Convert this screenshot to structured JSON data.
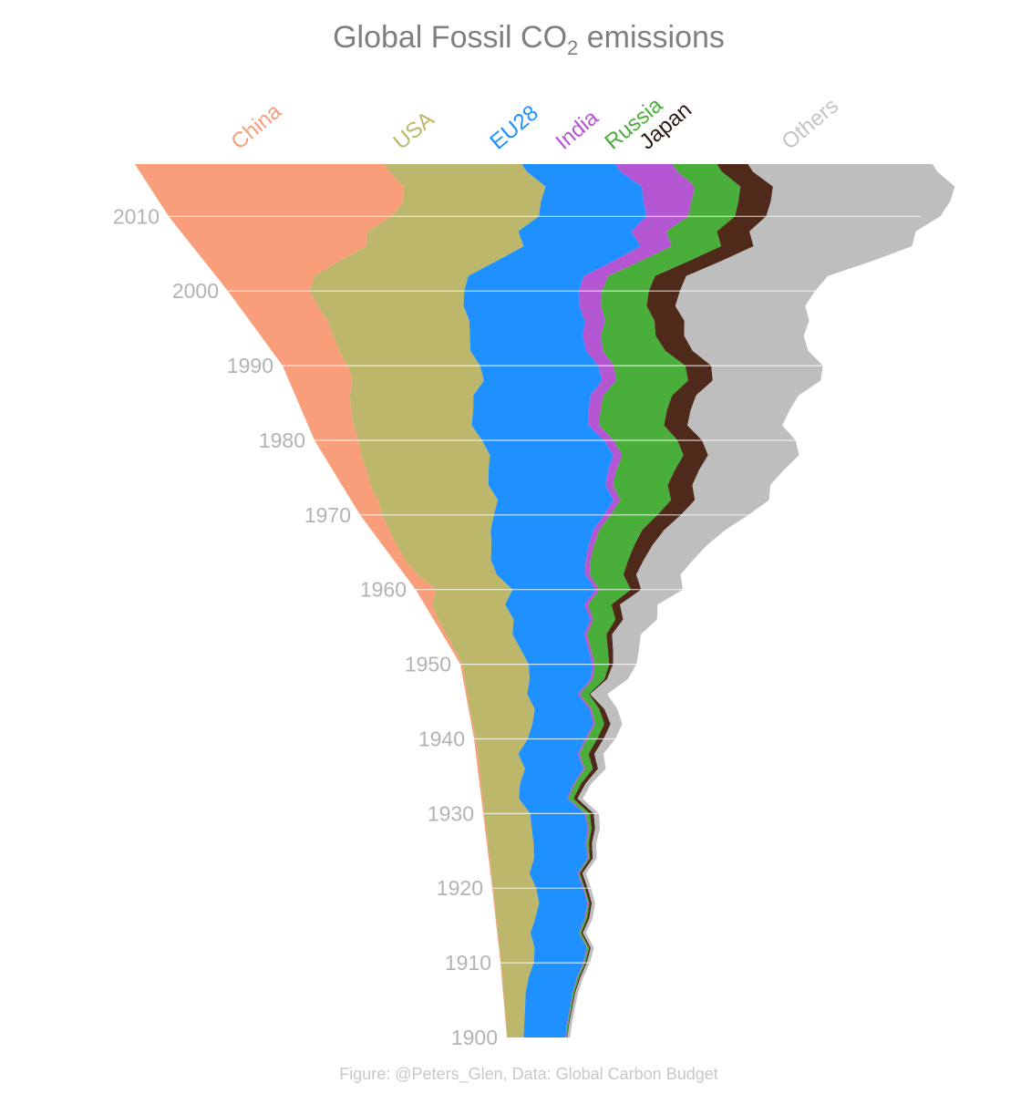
{
  "chart_data": {
    "type": "area",
    "title_main": "Global Fossil CO",
    "title_sub": "2",
    "title_rest": " emissions",
    "caption": "Figure: @Peters_Glen, Data: Global Carbon Budget",
    "years": [
      1900,
      1902,
      1904,
      1906,
      1908,
      1910,
      1912,
      1914,
      1916,
      1918,
      1920,
      1922,
      1924,
      1926,
      1928,
      1930,
      1932,
      1934,
      1936,
      1938,
      1940,
      1942,
      1944,
      1946,
      1948,
      1950,
      1952,
      1954,
      1956,
      1958,
      1960,
      1962,
      1964,
      1966,
      1968,
      1970,
      1972,
      1974,
      1976,
      1978,
      1980,
      1982,
      1984,
      1986,
      1988,
      1990,
      1992,
      1994,
      1996,
      1998,
      2000,
      2002,
      2004,
      2006,
      2008,
      2010,
      2012,
      2014,
      2016
    ],
    "year_ticks": [
      1900,
      1910,
      1920,
      1930,
      1940,
      1950,
      1960,
      1970,
      1980,
      1990,
      2000,
      2010
    ],
    "series": [
      {
        "name": "China",
        "color": "#f99e7a",
        "values": [
          0.02,
          0.02,
          0.02,
          0.02,
          0.03,
          0.03,
          0.03,
          0.03,
          0.03,
          0.04,
          0.04,
          0.05,
          0.05,
          0.05,
          0.05,
          0.06,
          0.05,
          0.06,
          0.07,
          0.08,
          0.07,
          0.05,
          0.05,
          0.06,
          0.06,
          0.08,
          0.12,
          0.15,
          0.18,
          0.3,
          0.78,
          0.5,
          0.45,
          0.55,
          0.7,
          0.85,
          1.05,
          1.1,
          1.3,
          1.45,
          1.7,
          1.75,
          1.9,
          2.1,
          2.45,
          2.5,
          2.6,
          2.8,
          3.0,
          3.05,
          3.15,
          3.8,
          5.2,
          6.7,
          7.2,
          8.6,
          9.4,
          9.8,
          9.6
        ]
      },
      {
        "name": "USA",
        "color": "#bdb76b",
        "values": [
          0.63,
          0.7,
          0.78,
          0.85,
          1.0,
          1.25,
          1.35,
          1.25,
          1.5,
          1.7,
          1.65,
          1.45,
          1.7,
          1.75,
          1.75,
          1.75,
          1.4,
          1.5,
          1.75,
          1.55,
          2.0,
          2.3,
          2.5,
          2.3,
          2.5,
          2.55,
          2.55,
          2.55,
          2.9,
          2.8,
          2.95,
          3.05,
          3.3,
          3.65,
          3.9,
          4.3,
          4.6,
          4.55,
          4.7,
          4.95,
          4.75,
          4.55,
          4.7,
          4.75,
          5.05,
          5.1,
          5.05,
          5.25,
          5.45,
          5.6,
          5.95,
          5.9,
          6.05,
          6.05,
          5.8,
          5.65,
          5.3,
          5.45,
          5.3
        ]
      },
      {
        "name": "EU28",
        "color": "#1e90ff",
        "values": [
          1.6,
          1.65,
          1.72,
          1.8,
          1.85,
          1.9,
          2.0,
          1.85,
          1.9,
          1.85,
          1.8,
          1.85,
          2.05,
          2.0,
          2.15,
          2.1,
          1.85,
          2.05,
          2.25,
          2.3,
          2.2,
          2.35,
          2.1,
          1.95,
          2.35,
          2.45,
          2.6,
          2.75,
          2.95,
          3.05,
          3.2,
          3.4,
          3.65,
          3.75,
          3.95,
          4.25,
          4.45,
          4.5,
          4.6,
          4.75,
          4.7,
          4.5,
          4.45,
          4.5,
          4.55,
          4.55,
          4.45,
          4.35,
          4.45,
          4.45,
          4.4,
          4.45,
          4.5,
          4.5,
          4.35,
          4.15,
          3.95,
          3.7,
          3.6
        ]
      },
      {
        "name": "India",
        "color": "#b556d3",
        "values": [
          0.02,
          0.02,
          0.02,
          0.02,
          0.03,
          0.03,
          0.03,
          0.03,
          0.03,
          0.04,
          0.04,
          0.04,
          0.04,
          0.05,
          0.05,
          0.05,
          0.05,
          0.05,
          0.06,
          0.06,
          0.07,
          0.07,
          0.08,
          0.08,
          0.08,
          0.1,
          0.1,
          0.11,
          0.12,
          0.14,
          0.15,
          0.17,
          0.19,
          0.21,
          0.23,
          0.25,
          0.27,
          0.29,
          0.32,
          0.35,
          0.37,
          0.4,
          0.45,
          0.5,
          0.56,
          0.6,
          0.65,
          0.7,
          0.78,
          0.85,
          0.9,
          0.95,
          1.05,
          1.2,
          1.35,
          1.6,
          1.85,
          2.05,
          2.2
        ]
      },
      {
        "name": "Russia",
        "color": "#4aaf3a",
        "values": [
          0.04,
          0.04,
          0.05,
          0.05,
          0.06,
          0.06,
          0.07,
          0.07,
          0.07,
          0.05,
          0.04,
          0.05,
          0.06,
          0.08,
          0.1,
          0.15,
          0.2,
          0.25,
          0.3,
          0.35,
          0.4,
          0.35,
          0.3,
          0.35,
          0.45,
          0.55,
          0.65,
          0.75,
          0.85,
          0.9,
          1.2,
          1.3,
          1.45,
          1.55,
          1.65,
          1.8,
          1.95,
          2.1,
          2.25,
          2.35,
          2.45,
          2.5,
          2.55,
          2.65,
          2.75,
          2.75,
          2.4,
          2.1,
          1.9,
          1.75,
          1.8,
          1.8,
          1.85,
          1.9,
          1.95,
          1.8,
          1.8,
          1.75,
          1.7
        ]
      },
      {
        "name": "Japan",
        "color": "#4f2a1a",
        "values": [
          0.02,
          0.03,
          0.03,
          0.04,
          0.05,
          0.05,
          0.06,
          0.07,
          0.08,
          0.09,
          0.1,
          0.1,
          0.11,
          0.12,
          0.14,
          0.15,
          0.15,
          0.17,
          0.2,
          0.22,
          0.25,
          0.24,
          0.2,
          0.05,
          0.1,
          0.15,
          0.2,
          0.22,
          0.3,
          0.33,
          0.4,
          0.5,
          0.6,
          0.7,
          0.85,
          0.9,
          0.92,
          0.95,
          0.93,
          0.95,
          0.95,
          0.9,
          0.92,
          0.92,
          0.95,
          1.0,
          1.05,
          1.1,
          1.15,
          1.1,
          1.2,
          1.2,
          1.25,
          1.25,
          1.25,
          1.2,
          1.25,
          1.25,
          1.2
        ]
      },
      {
        "name": "Others",
        "color": "#bebebe",
        "values": [
          0.1,
          0.1,
          0.1,
          0.11,
          0.11,
          0.12,
          0.12,
          0.12,
          0.13,
          0.13,
          0.13,
          0.14,
          0.15,
          0.16,
          0.18,
          0.2,
          0.2,
          0.22,
          0.3,
          0.35,
          0.45,
          0.45,
          0.5,
          0.65,
          0.8,
          0.9,
          1.0,
          1.1,
          1.3,
          1.45,
          1.6,
          1.7,
          1.9,
          2.1,
          2.35,
          2.6,
          2.85,
          3.0,
          3.25,
          3.5,
          3.6,
          3.65,
          3.8,
          3.95,
          4.15,
          4.3,
          4.45,
          4.6,
          4.8,
          5.0,
          5.2,
          5.45,
          5.8,
          6.1,
          6.4,
          6.7,
          6.9,
          7.0,
          7.1
        ]
      }
    ]
  }
}
